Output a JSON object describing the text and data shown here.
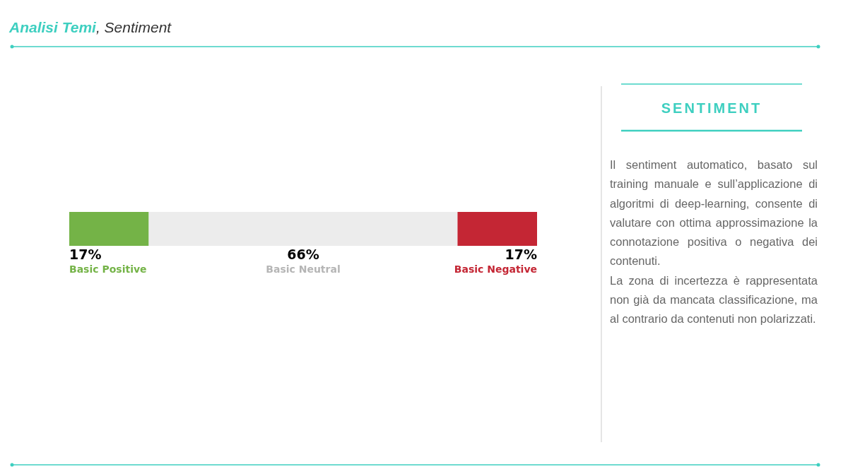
{
  "chart_data": {
    "type": "bar",
    "orientation": "horizontal",
    "stacked": true,
    "title": "Analisi Temi, Sentiment",
    "categories": [
      null
    ],
    "series": [
      {
        "name": "Basic Positive",
        "color": "#74b347",
        "values": [
          17
        ],
        "value_labels": [
          "17%"
        ]
      },
      {
        "name": "Basic Neutral",
        "color": "#ececec",
        "values": [
          66
        ],
        "value_labels": [
          "66%"
        ]
      },
      {
        "name": "Basic Negative",
        "color": "#c42634",
        "values": [
          17
        ],
        "value_labels": [
          "17%"
        ]
      }
    ],
    "annotations": [
      "SENTIMENT",
      "Il sentiment automatico, basato sul training manuale e sull’applicazione di algoritmi di deep-learning, consente di valutare con ottima approssimazione la connotazione positiva o negativa dei contenuti.",
      "La zona di incertezza è rappresentata non già da mancata classificazione, ma al contrario da contenuti non polarizzati."
    ],
    "legend": false
  }
}
